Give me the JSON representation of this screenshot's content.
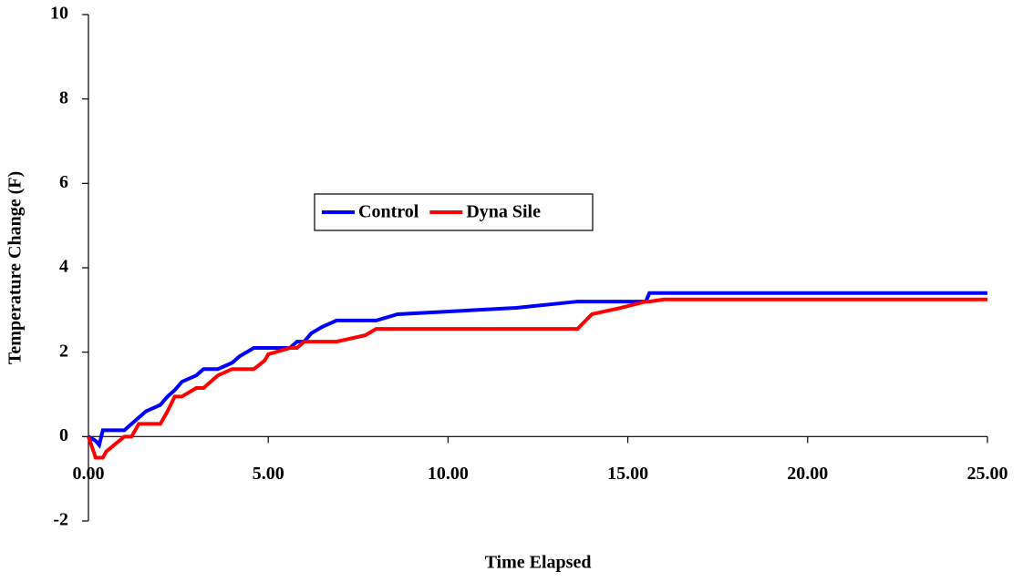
{
  "chart_data": {
    "type": "line",
    "xlabel": "Time Elapsed",
    "ylabel": "Temperature Change (F)",
    "x": [
      0,
      0.2,
      0.3,
      0.4,
      0.5,
      1.0,
      1.2,
      1.4,
      1.6,
      2.0,
      2.2,
      2.4,
      2.6,
      3.0,
      3.2,
      3.4,
      3.6,
      4.0,
      4.2,
      4.6,
      4.9,
      5.0,
      5.6,
      5.8,
      6.0,
      6.2,
      6.5,
      6.9,
      7.7,
      8.0,
      8.6,
      11.9,
      13.6,
      14.0,
      14.8,
      15.5,
      15.6,
      16.0,
      25
    ],
    "series": [
      {
        "name": "Control",
        "color": "#0000ff",
        "values": [
          0,
          -0.1,
          -0.2,
          0.15,
          0.15,
          0.15,
          0.3,
          0.45,
          0.6,
          0.75,
          0.95,
          1.1,
          1.3,
          1.45,
          1.6,
          1.6,
          1.6,
          1.75,
          1.9,
          2.1,
          2.1,
          2.1,
          2.1,
          2.25,
          2.25,
          2.45,
          2.6,
          2.75,
          2.75,
          2.75,
          2.9,
          3.05,
          3.2,
          3.2,
          3.2,
          3.2,
          3.4,
          3.4,
          3.4
        ]
      },
      {
        "name": "Dyna Sile",
        "color": "#ff0000",
        "values": [
          0,
          -0.5,
          -0.5,
          -0.5,
          -0.35,
          0,
          0,
          0.3,
          0.3,
          0.3,
          0.6,
          0.95,
          0.95,
          1.15,
          1.15,
          1.3,
          1.45,
          1.6,
          1.6,
          1.6,
          1.8,
          1.95,
          2.1,
          2.1,
          2.25,
          2.25,
          2.25,
          2.25,
          2.4,
          2.55,
          2.55,
          2.55,
          2.55,
          2.9,
          3.05,
          3.2,
          3.2,
          3.25,
          3.25
        ]
      }
    ],
    "xlim": [
      0,
      25
    ],
    "xticks": [
      {
        "value": 0,
        "label": "0.00"
      },
      {
        "value": 5,
        "label": "5.00"
      },
      {
        "value": 10,
        "label": "10.00"
      },
      {
        "value": 15,
        "label": "15.00"
      },
      {
        "value": 20,
        "label": "20.00"
      },
      {
        "value": 25,
        "label": "25.00"
      }
    ],
    "ylim": [
      -2,
      10
    ],
    "yticks": [
      -2,
      0,
      2,
      4,
      6,
      8,
      10
    ],
    "grid": false
  }
}
